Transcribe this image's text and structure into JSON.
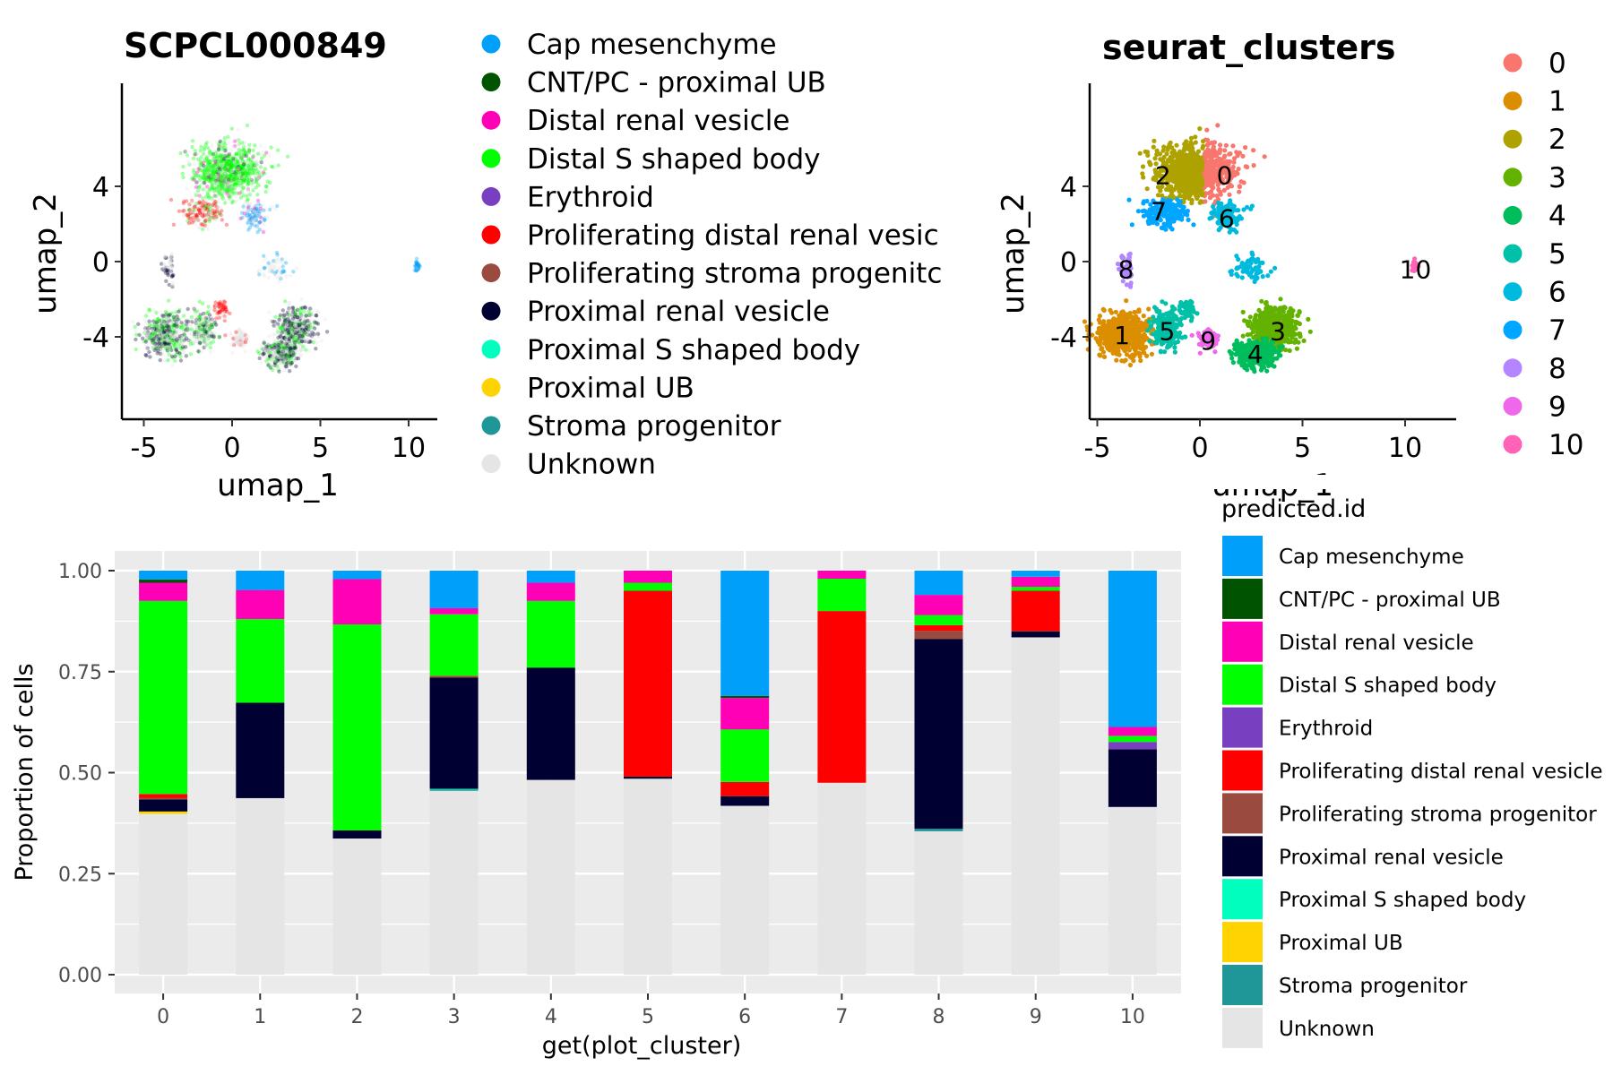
{
  "colors": {
    "Cap mesenchyme": "#00A0FA",
    "CNT/PC - proximal UB": "#005300",
    "Distal renal vesicle": "#FF00B6",
    "Distal S shaped body": "#00FF00",
    "Erythroid": "#783FC1",
    "Proliferating distal renal vesicle": "#FF0000",
    "Proliferating stroma progenitor": "#9A4A3F",
    "Proximal renal vesicle": "#000033",
    "Proximal S shaped body": "#00FFBE",
    "Proximal UB": "#FFD300",
    "Stroma progenitor": "#1F9698",
    "Unknown": "#E5E5E5"
  },
  "umap_left": {
    "title": "SCPCL000849",
    "xlabel": "umap_1",
    "ylabel": "umap_2",
    "x_ticks": [
      "-5",
      "0",
      "5",
      "10"
    ],
    "y_ticks": [
      "4",
      "0",
      "-4"
    ],
    "legend": [
      "Cap mesenchyme",
      "CNT/PC - proximal UB",
      "Distal renal vesicle",
      "Distal S shaped body",
      "Erythroid",
      "Proliferating distal renal vesic",
      "Proliferating stroma progenitc",
      "Proximal renal vesicle",
      "Proximal S shaped body",
      "Proximal UB",
      "Stroma progenitor",
      "Unknown"
    ]
  },
  "umap_right": {
    "title": "seurat_clusters",
    "xlabel": "umap_1",
    "ylabel": "umap_2",
    "x_ticks": [
      "-5",
      "0",
      "5",
      "10"
    ],
    "y_ticks": [
      "4",
      "0",
      "-4"
    ],
    "legend": [
      "0",
      "1",
      "2",
      "3",
      "4",
      "5",
      "6",
      "7",
      "8",
      "9",
      "10"
    ],
    "cluster_colors": [
      "#F8766D",
      "#DB8E00",
      "#AEA200",
      "#64B200",
      "#00BD5C",
      "#00C1A7",
      "#00BADE",
      "#00A6FF",
      "#B385FF",
      "#EF67EB",
      "#FF63B6"
    ],
    "cluster_centers": [
      {
        "label": "0",
        "x": 1.2,
        "y": 4.6
      },
      {
        "label": "1",
        "x": -3.8,
        "y": -3.9
      },
      {
        "label": "2",
        "x": -1.8,
        "y": 4.6
      },
      {
        "label": "3",
        "x": 3.8,
        "y": -3.7
      },
      {
        "label": "4",
        "x": 2.7,
        "y": -4.9
      },
      {
        "label": "5",
        "x": -1.6,
        "y": -3.7
      },
      {
        "label": "6",
        "x": 1.3,
        "y": 2.3
      },
      {
        "label": "7",
        "x": -2.0,
        "y": 2.7
      },
      {
        "label": "8",
        "x": -3.6,
        "y": -0.4
      },
      {
        "label": "9",
        "x": 0.4,
        "y": -4.2
      },
      {
        "label": "10",
        "x": 10.5,
        "y": -0.4
      }
    ]
  },
  "chart_data": {
    "type": "bar",
    "stacked": true,
    "xlabel": "get(plot_cluster)",
    "ylabel": "Proportion of cells",
    "ylim": [
      0,
      1
    ],
    "y_ticks": [
      "0.00",
      "0.25",
      "0.50",
      "0.75",
      "1.00"
    ],
    "legend_title": "predicted.id",
    "legend": [
      "Cap mesenchyme",
      "CNT/PC - proximal UB",
      "Distal renal vesicle",
      "Distal S shaped body",
      "Erythroid",
      "Proliferating distal renal vesicle",
      "Proliferating stroma progenitor",
      "Proximal renal vesicle",
      "Proximal S shaped body",
      "Proximal UB",
      "Stroma progenitor",
      "Unknown"
    ],
    "categories": [
      "0",
      "1",
      "2",
      "3",
      "4",
      "5",
      "6",
      "7",
      "8",
      "9",
      "10"
    ],
    "series": [
      {
        "name": "Unknown",
        "values": [
          0.398,
          0.437,
          0.337,
          0.455,
          0.482,
          0.485,
          0.418,
          0.475,
          0.355,
          0.835,
          0.415
        ]
      },
      {
        "name": "Stroma progenitor",
        "values": [
          0,
          0,
          0,
          0.003,
          0,
          0,
          0,
          0,
          0.006,
          0,
          0
        ]
      },
      {
        "name": "Proximal UB",
        "values": [
          0.006,
          0,
          0,
          0,
          0,
          0,
          0,
          0,
          0,
          0,
          0
        ]
      },
      {
        "name": "Proximal S shaped body",
        "values": [
          0,
          0,
          0,
          0.002,
          0,
          0,
          0,
          0,
          0,
          0,
          0
        ]
      },
      {
        "name": "Proximal renal vesicle",
        "values": [
          0.03,
          0.236,
          0.02,
          0.275,
          0.278,
          0.005,
          0.024,
          0,
          0.47,
          0.015,
          0.143
        ]
      },
      {
        "name": "Proliferating stroma progenitor",
        "values": [
          0.003,
          0,
          0,
          0.005,
          0,
          0,
          0,
          0,
          0.02,
          0,
          0
        ]
      },
      {
        "name": "Proliferating distal renal vesicle",
        "values": [
          0.01,
          0,
          0,
          0,
          0,
          0.46,
          0.035,
          0.425,
          0.014,
          0.1,
          0
        ]
      },
      {
        "name": "Erythroid",
        "values": [
          0,
          0,
          0,
          0,
          0,
          0,
          0,
          0,
          0,
          0,
          0.018
        ]
      },
      {
        "name": "Distal S shaped body",
        "values": [
          0.478,
          0.207,
          0.51,
          0.152,
          0.165,
          0.02,
          0.13,
          0.08,
          0.025,
          0.01,
          0.015
        ]
      },
      {
        "name": "Distal renal vesicle",
        "values": [
          0.045,
          0.072,
          0.112,
          0.015,
          0.045,
          0.03,
          0.078,
          0.02,
          0.05,
          0.025,
          0.022
        ]
      },
      {
        "name": "CNT/PC - proximal UB",
        "values": [
          0.008,
          0,
          0,
          0,
          0,
          0,
          0.005,
          0,
          0,
          0,
          0
        ]
      },
      {
        "name": "Cap mesenchyme",
        "values": [
          0.022,
          0.048,
          0.021,
          0.093,
          0.03,
          0,
          0.31,
          0,
          0.06,
          0.015,
          0.387
        ]
      }
    ]
  }
}
